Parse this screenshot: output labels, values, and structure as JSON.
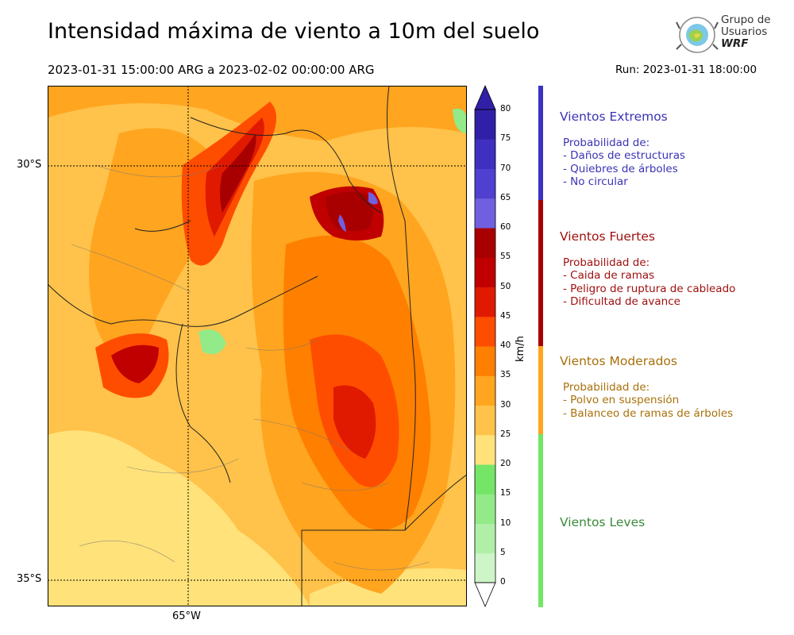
{
  "title": "Intensidad máxima de viento a 10m del suelo",
  "period": "2023-01-31 15:00:00 ARG  a  2023-02-02 00:00:00 ARG",
  "run": "Run: 2023-01-31 18:00:00",
  "logo": {
    "line1": "Grupo de",
    "line2": "Usuarios",
    "line3": "WRF"
  },
  "map": {
    "lat_labels": [
      "30°S",
      "35°S"
    ],
    "lon_label": "65°W"
  },
  "colorbar": {
    "unit": "km/h",
    "ticks": [
      "80",
      "75",
      "70",
      "65",
      "60",
      "55",
      "50",
      "45",
      "40",
      "35",
      "30",
      "25",
      "20",
      "15",
      "10",
      "5",
      "0"
    ],
    "colors": [
      "#e8fbe8",
      "#cdf5c8",
      "#b1efa8",
      "#92ea88",
      "#74e567",
      "#ffe27a",
      "#ffc24a",
      "#ffa51f",
      "#ff7f00",
      "#ff4d00",
      "#e01a00",
      "#c00000",
      "#a80000",
      "#7060e0",
      "#5040d0",
      "#4030c0",
      "#3020a8"
    ]
  },
  "categories": [
    {
      "title": "Vientos Extremos",
      "lines": [
        "Probabilidad de:",
        "- Daños de estructuras",
        "- Quiebres de árboles",
        "- No circular"
      ],
      "color": "#3a33b5"
    },
    {
      "title": "Vientos Fuertes",
      "lines": [
        "Probabilidad de:",
        "- Caida de ramas",
        "- Peligro de ruptura de cableado",
        "- Dificultad de avance"
      ],
      "color": "#a01010"
    },
    {
      "title": "Vientos Moderados",
      "lines": [
        "Probabilidad de:",
        "- Polvo en suspensión",
        "- Balanceo de ramas de árboles"
      ],
      "color": "#a8700a"
    },
    {
      "title": "Vientos Leves",
      "lines": [],
      "color": "#3a8a3a"
    }
  ]
}
